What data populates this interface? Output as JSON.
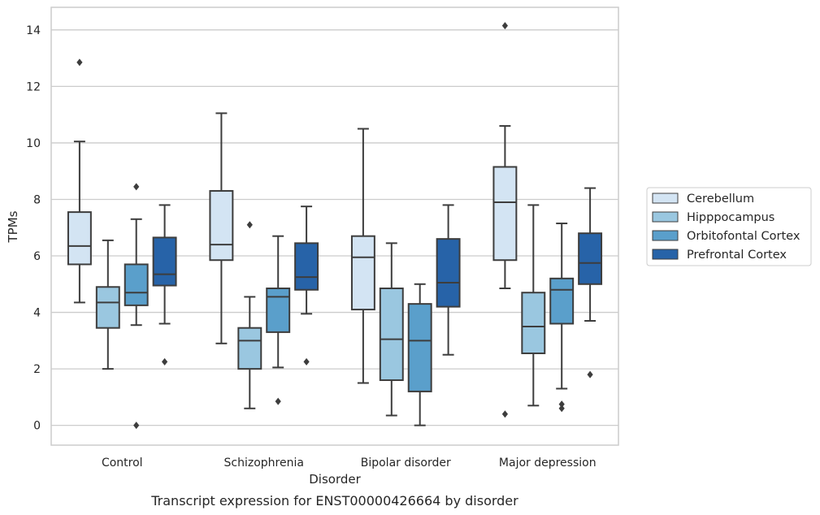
{
  "chart_data": {
    "type": "boxplot",
    "title": "",
    "caption": "Transcript expression for ENST00000426664 by disorder",
    "xlabel": "Disorder",
    "ylabel": "TPMs",
    "ylim": [
      -0.7,
      14.8
    ],
    "yticks": [
      0,
      2,
      4,
      6,
      8,
      10,
      12,
      14
    ],
    "grid": "horizontal",
    "legend_position": "right",
    "categories": [
      "Control",
      "Schizophrenia",
      "Bipolar disorder",
      "Major depression"
    ],
    "series": [
      {
        "name": "Cerebellum",
        "color": "#d3e4f3",
        "boxes": [
          {
            "whisker_low": 4.35,
            "q1": 5.7,
            "median": 6.35,
            "q3": 7.55,
            "whisker_high": 10.05,
            "outliers": [
              12.85
            ]
          },
          {
            "whisker_low": 2.9,
            "q1": 5.85,
            "median": 6.4,
            "q3": 8.3,
            "whisker_high": 11.05,
            "outliers": []
          },
          {
            "whisker_low": 1.5,
            "q1": 4.1,
            "median": 5.95,
            "q3": 6.7,
            "whisker_high": 10.5,
            "outliers": []
          },
          {
            "whisker_low": 4.85,
            "q1": 5.85,
            "median": 7.9,
            "q3": 9.15,
            "whisker_high": 10.6,
            "outliers": [
              0.4,
              14.15
            ]
          }
        ]
      },
      {
        "name": "Hipppocampus",
        "color": "#9ac7e0",
        "boxes": [
          {
            "whisker_low": 2.0,
            "q1": 3.45,
            "median": 4.35,
            "q3": 4.9,
            "whisker_high": 6.55,
            "outliers": []
          },
          {
            "whisker_low": 0.6,
            "q1": 2.0,
            "median": 3.0,
            "q3": 3.45,
            "whisker_high": 4.55,
            "outliers": [
              7.1
            ]
          },
          {
            "whisker_low": 0.35,
            "q1": 1.6,
            "median": 3.05,
            "q3": 4.85,
            "whisker_high": 6.45,
            "outliers": []
          },
          {
            "whisker_low": 0.7,
            "q1": 2.55,
            "median": 3.5,
            "q3": 4.7,
            "whisker_high": 7.8,
            "outliers": []
          }
        ]
      },
      {
        "name": "Orbitofontal Cortex",
        "color": "#5a9fcb",
        "boxes": [
          {
            "whisker_low": 3.55,
            "q1": 4.25,
            "median": 4.7,
            "q3": 5.7,
            "whisker_high": 7.3,
            "outliers": [
              8.45,
              0.0
            ]
          },
          {
            "whisker_low": 2.05,
            "q1": 3.3,
            "median": 4.55,
            "q3": 4.85,
            "whisker_high": 6.7,
            "outliers": [
              0.85
            ]
          },
          {
            "whisker_low": 0.0,
            "q1": 1.2,
            "median": 3.0,
            "q3": 4.3,
            "whisker_high": 5.0,
            "outliers": []
          },
          {
            "whisker_low": 1.3,
            "q1": 3.6,
            "median": 4.8,
            "q3": 5.2,
            "whisker_high": 7.15,
            "outliers": [
              0.75,
              0.6
            ]
          }
        ]
      },
      {
        "name": "Prefrontal Cortex",
        "color": "#2763a8",
        "boxes": [
          {
            "whisker_low": 3.6,
            "q1": 4.95,
            "median": 5.35,
            "q3": 6.65,
            "whisker_high": 7.8,
            "outliers": [
              2.25
            ]
          },
          {
            "whisker_low": 3.95,
            "q1": 4.8,
            "median": 5.25,
            "q3": 6.45,
            "whisker_high": 7.75,
            "outliers": [
              2.25
            ]
          },
          {
            "whisker_low": 2.5,
            "q1": 4.2,
            "median": 5.05,
            "q3": 6.6,
            "whisker_high": 7.8,
            "outliers": []
          },
          {
            "whisker_low": 3.7,
            "q1": 5.0,
            "median": 5.75,
            "q3": 6.8,
            "whisker_high": 8.4,
            "outliers": [
              1.8
            ]
          }
        ]
      }
    ]
  }
}
